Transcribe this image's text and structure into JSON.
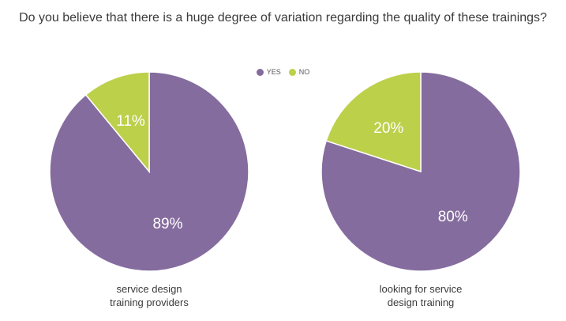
{
  "title": "Do you believe that there is a huge degree of variation regarding the quality of these trainings?",
  "legend": [
    {
      "label": "YES",
      "color": "#856c9e"
    },
    {
      "label": "NO",
      "color": "#bcd04a"
    }
  ],
  "chart_data": [
    {
      "type": "pie",
      "title": "",
      "caption_lines": [
        "service design",
        "training providers"
      ],
      "slices": [
        {
          "label": "YES",
          "value": 89,
          "display": "89%",
          "color": "#856c9e"
        },
        {
          "label": "NO",
          "value": 11,
          "display": "11%",
          "color": "#bcd04a"
        }
      ]
    },
    {
      "type": "pie",
      "title": "",
      "caption_lines": [
        "looking for service",
        "design training"
      ],
      "slices": [
        {
          "label": "YES",
          "value": 80,
          "display": "80%",
          "color": "#856c9e"
        },
        {
          "label": "NO",
          "value": 20,
          "display": "20%",
          "color": "#bcd04a"
        }
      ]
    }
  ]
}
